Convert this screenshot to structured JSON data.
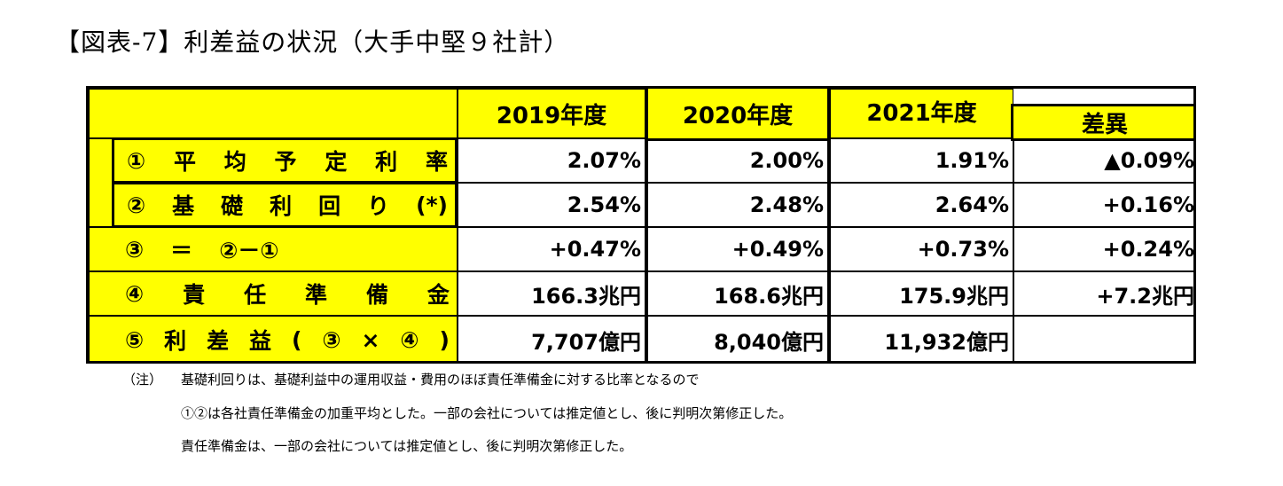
{
  "title": "【図表-7】利差益の状況（大手中堅９社計）",
  "header": {
    "col_2019": "2019年度",
    "col_2020": "2020年度",
    "col_2021": "2021年度",
    "col_diff": "差異"
  },
  "rows": [
    {
      "label": [
        "①",
        "平",
        "均",
        "予",
        "定",
        "利",
        "率"
      ],
      "v2019": "2.07%",
      "v2020": "2.00%",
      "v2021": "1.91%",
      "diff": "▲0.09%"
    },
    {
      "label": [
        "②",
        "基",
        "礎",
        "利",
        "回",
        "り",
        "(*)"
      ],
      "v2019": "2.54%",
      "v2020": "2.48%",
      "v2021": "2.64%",
      "diff": "+0.16%"
    },
    {
      "label": [
        "③",
        "＝",
        "②－①"
      ],
      "v2019": "+0.47%",
      "v2020": "+0.49%",
      "v2021": "+0.73%",
      "diff": "+0.24%"
    },
    {
      "label": [
        "④",
        "責",
        "任",
        "準",
        "備",
        "金"
      ],
      "v2019": "166.3兆円",
      "v2020": "168.6兆円",
      "v2021": "175.9兆円",
      "diff": "+7.2兆円"
    },
    {
      "label": [
        "⑤",
        "利",
        "差",
        "益",
        "(",
        "③",
        "×",
        "④",
        ")"
      ],
      "v2019": "7,707億円",
      "v2020": "8,040億円",
      "v2021": "11,932億円",
      "diff": ""
    }
  ],
  "notes": {
    "prefix": "（注）",
    "line1": "基礎利回りは、基礎利益中の運用収益・費用のほぼ責任準備金に対する比率となるので",
    "line2": "①②は各社責任準備金の加重平均とした。一部の会社については推定値とし、後に判明次第修正した。",
    "line3": "責任準備金は、一部の会社については推定値とし、後に判明次第修正した。"
  }
}
